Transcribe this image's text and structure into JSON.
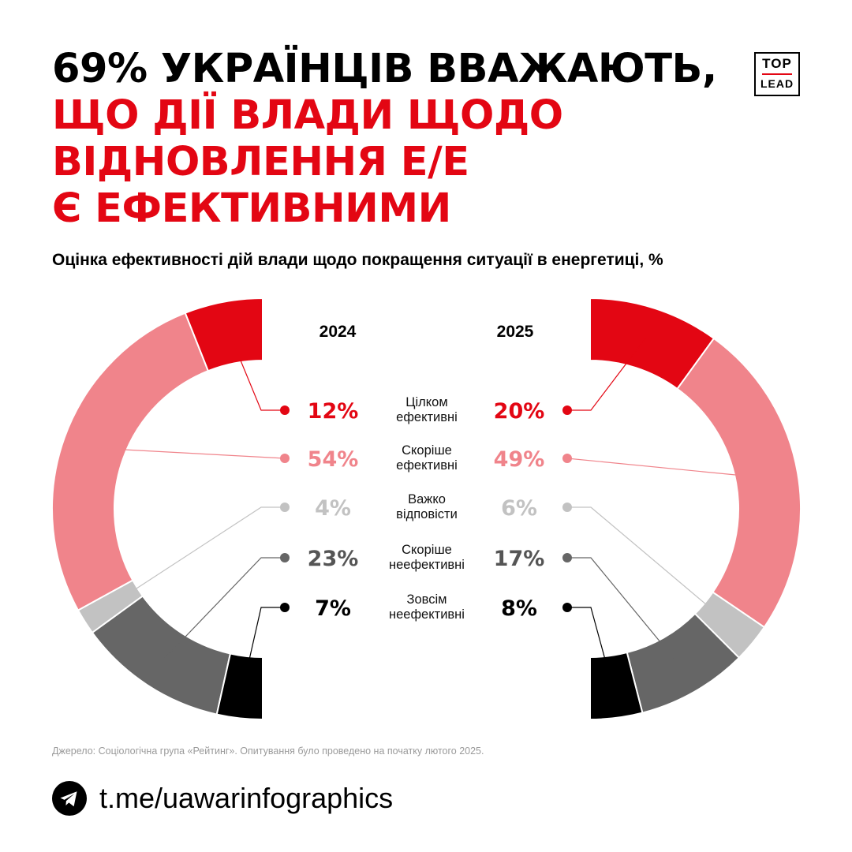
{
  "title": {
    "line1": "69% УКРАЇНЦІВ ВВАЖАЮТЬ,",
    "line2": "ЩО ДІЇ ВЛАДИ ЩОДО",
    "line3": "ВІДНОВЛЕННЯ Е/Е",
    "line4": "Є ЕФЕКТИВНИМИ"
  },
  "logo": {
    "top": "TOP",
    "bottom": "LEAD"
  },
  "subtitle": "Оцінка ефективності дій влади щодо покращення ситуації в енергетиці, %",
  "chart_data": {
    "type": "pie",
    "subtitle": "Оцінка ефективності дій влади щодо покращення ситуації в енергетиці, %",
    "categories": [
      [
        "Цілком",
        "ефективні"
      ],
      [
        "Скоріше",
        "ефективні"
      ],
      [
        "Важко",
        "відповісти"
      ],
      [
        "Скоріше",
        "неефективні"
      ],
      [
        "Зовсім",
        "неефективні"
      ]
    ],
    "series": [
      {
        "name": "2024",
        "values": [
          12,
          54,
          4,
          23,
          7
        ]
      },
      {
        "name": "2025",
        "values": [
          20,
          49,
          6,
          17,
          8
        ]
      }
    ],
    "value_suffix": "%",
    "colors": [
      "#e30613",
      "#f0848b",
      "#c2c2c2",
      "#666666",
      "#000000"
    ],
    "label_colors": [
      "#e30613",
      "#f0848b",
      "#c2c2c2",
      "#555555",
      "#000000"
    ]
  },
  "source": "Джерело: Соціологічна група «Рейтинг». Опитування було проведено на початку лютого 2025.",
  "footer": {
    "icon": "telegram-icon",
    "link": "t.me/uawarinfographics"
  }
}
